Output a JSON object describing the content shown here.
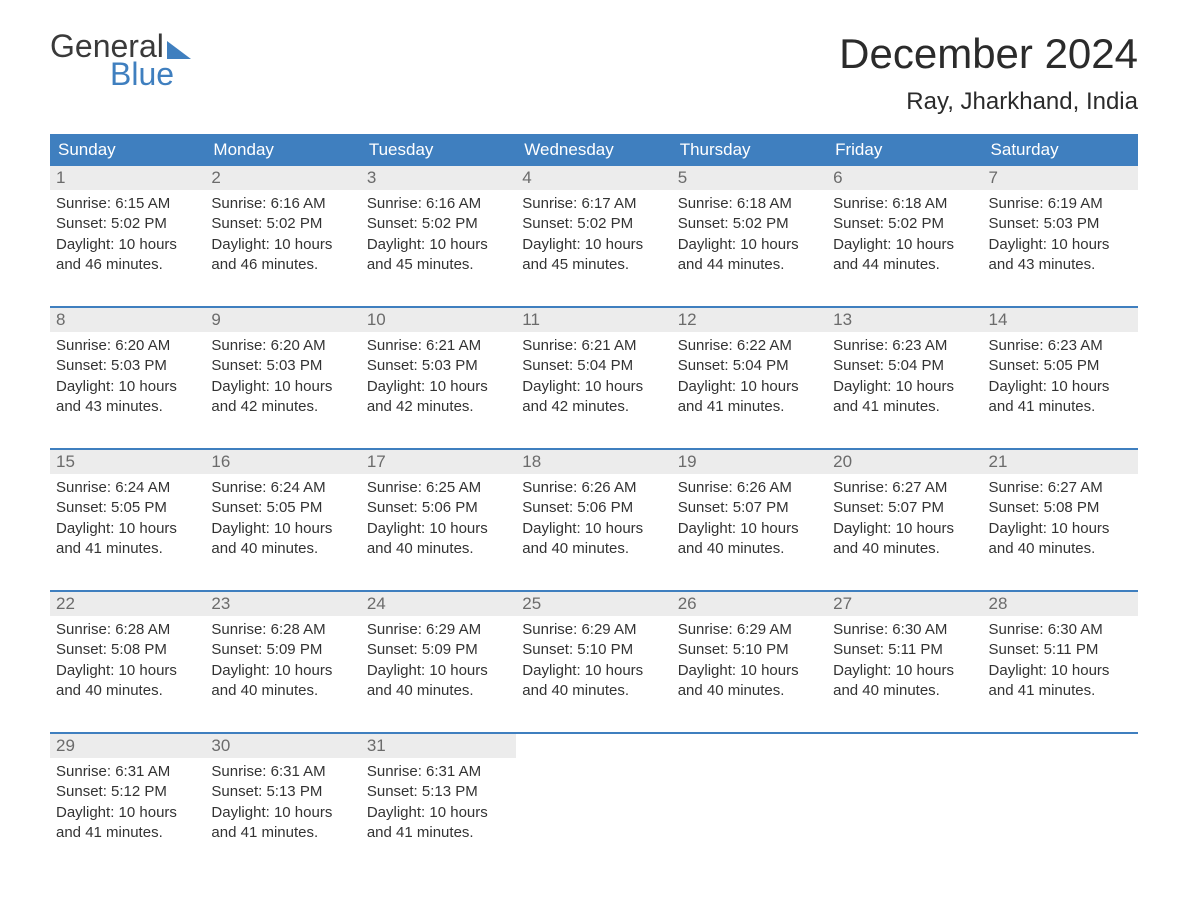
{
  "brand": {
    "top": "General",
    "bottom": "Blue"
  },
  "title": "December 2024",
  "location": "Ray, Jharkhand, India",
  "colors": {
    "header_bg": "#3f7fbf",
    "header_text": "#ffffff",
    "daynum_bg": "#ececec",
    "daynum_text": "#6b6b6b",
    "body_text": "#333333",
    "page_bg": "#ffffff",
    "week_border": "#3f7fbf"
  },
  "typography": {
    "title_fontsize": 42,
    "location_fontsize": 24,
    "dow_fontsize": 17,
    "body_fontsize": 15
  },
  "days_of_week": [
    "Sunday",
    "Monday",
    "Tuesday",
    "Wednesday",
    "Thursday",
    "Friday",
    "Saturday"
  ],
  "labels": {
    "sunrise": "Sunrise:",
    "sunset": "Sunset:",
    "daylight": "Daylight:",
    "hours_prefix": "10 hours",
    "and": "and",
    "minutes_suffix": "minutes."
  },
  "weeks": [
    [
      {
        "n": "1",
        "sunrise": "6:15 AM",
        "sunset": "5:02 PM",
        "min": "46"
      },
      {
        "n": "2",
        "sunrise": "6:16 AM",
        "sunset": "5:02 PM",
        "min": "46"
      },
      {
        "n": "3",
        "sunrise": "6:16 AM",
        "sunset": "5:02 PM",
        "min": "45"
      },
      {
        "n": "4",
        "sunrise": "6:17 AM",
        "sunset": "5:02 PM",
        "min": "45"
      },
      {
        "n": "5",
        "sunrise": "6:18 AM",
        "sunset": "5:02 PM",
        "min": "44"
      },
      {
        "n": "6",
        "sunrise": "6:18 AM",
        "sunset": "5:02 PM",
        "min": "44"
      },
      {
        "n": "7",
        "sunrise": "6:19 AM",
        "sunset": "5:03 PM",
        "min": "43"
      }
    ],
    [
      {
        "n": "8",
        "sunrise": "6:20 AM",
        "sunset": "5:03 PM",
        "min": "43"
      },
      {
        "n": "9",
        "sunrise": "6:20 AM",
        "sunset": "5:03 PM",
        "min": "42"
      },
      {
        "n": "10",
        "sunrise": "6:21 AM",
        "sunset": "5:03 PM",
        "min": "42"
      },
      {
        "n": "11",
        "sunrise": "6:21 AM",
        "sunset": "5:04 PM",
        "min": "42"
      },
      {
        "n": "12",
        "sunrise": "6:22 AM",
        "sunset": "5:04 PM",
        "min": "41"
      },
      {
        "n": "13",
        "sunrise": "6:23 AM",
        "sunset": "5:04 PM",
        "min": "41"
      },
      {
        "n": "14",
        "sunrise": "6:23 AM",
        "sunset": "5:05 PM",
        "min": "41"
      }
    ],
    [
      {
        "n": "15",
        "sunrise": "6:24 AM",
        "sunset": "5:05 PM",
        "min": "41"
      },
      {
        "n": "16",
        "sunrise": "6:24 AM",
        "sunset": "5:05 PM",
        "min": "40"
      },
      {
        "n": "17",
        "sunrise": "6:25 AM",
        "sunset": "5:06 PM",
        "min": "40"
      },
      {
        "n": "18",
        "sunrise": "6:26 AM",
        "sunset": "5:06 PM",
        "min": "40"
      },
      {
        "n": "19",
        "sunrise": "6:26 AM",
        "sunset": "5:07 PM",
        "min": "40"
      },
      {
        "n": "20",
        "sunrise": "6:27 AM",
        "sunset": "5:07 PM",
        "min": "40"
      },
      {
        "n": "21",
        "sunrise": "6:27 AM",
        "sunset": "5:08 PM",
        "min": "40"
      }
    ],
    [
      {
        "n": "22",
        "sunrise": "6:28 AM",
        "sunset": "5:08 PM",
        "min": "40"
      },
      {
        "n": "23",
        "sunrise": "6:28 AM",
        "sunset": "5:09 PM",
        "min": "40"
      },
      {
        "n": "24",
        "sunrise": "6:29 AM",
        "sunset": "5:09 PM",
        "min": "40"
      },
      {
        "n": "25",
        "sunrise": "6:29 AM",
        "sunset": "5:10 PM",
        "min": "40"
      },
      {
        "n": "26",
        "sunrise": "6:29 AM",
        "sunset": "5:10 PM",
        "min": "40"
      },
      {
        "n": "27",
        "sunrise": "6:30 AM",
        "sunset": "5:11 PM",
        "min": "40"
      },
      {
        "n": "28",
        "sunrise": "6:30 AM",
        "sunset": "5:11 PM",
        "min": "41"
      }
    ],
    [
      {
        "n": "29",
        "sunrise": "6:31 AM",
        "sunset": "5:12 PM",
        "min": "41"
      },
      {
        "n": "30",
        "sunrise": "6:31 AM",
        "sunset": "5:13 PM",
        "min": "41"
      },
      {
        "n": "31",
        "sunrise": "6:31 AM",
        "sunset": "5:13 PM",
        "min": "41"
      },
      null,
      null,
      null,
      null
    ]
  ]
}
